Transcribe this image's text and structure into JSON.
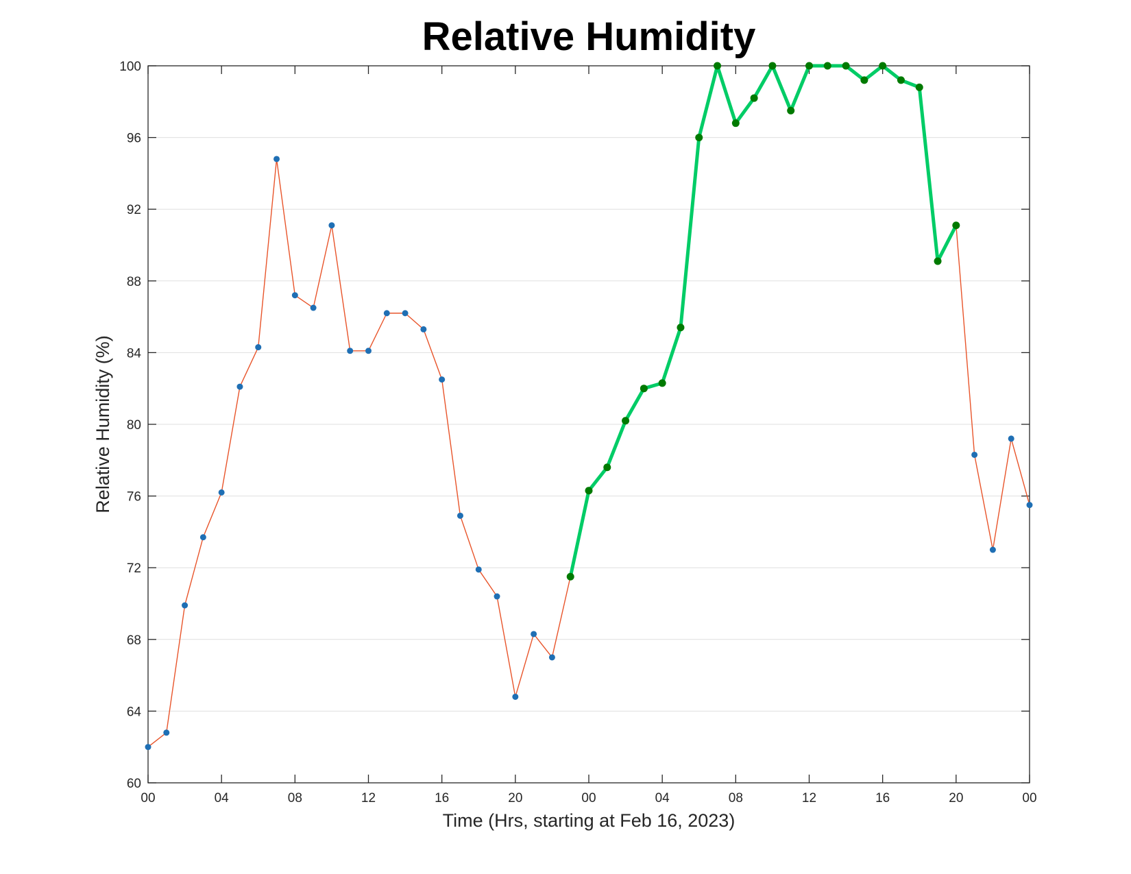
{
  "chart_data": {
    "type": "line",
    "title": "Relative Humidity",
    "xlabel": "Time (Hrs, starting at Feb 16, 2023)",
    "ylabel": "Relative Humidity (%)",
    "ylim": [
      60,
      100
    ],
    "yticks": [
      60,
      64,
      68,
      72,
      76,
      80,
      84,
      88,
      92,
      96,
      100
    ],
    "xlim": [
      0,
      48
    ],
    "xticks": [
      0,
      4,
      8,
      12,
      16,
      20,
      24,
      28,
      32,
      36,
      40,
      44,
      48
    ],
    "xtick_labels": [
      "00",
      "04",
      "08",
      "12",
      "16",
      "20",
      "00",
      "04",
      "08",
      "12",
      "16",
      "20",
      "00"
    ],
    "grid": "horizontal",
    "series": [
      {
        "x": [
          0,
          1,
          2,
          3,
          4,
          5,
          6,
          7,
          8,
          9,
          10,
          11,
          12,
          13,
          14,
          15,
          16,
          17,
          18,
          19,
          20,
          21,
          22,
          23,
          24,
          25,
          26,
          27,
          28,
          29,
          30,
          31,
          32,
          33,
          34,
          35,
          36,
          37,
          38,
          39,
          40,
          41,
          42,
          43,
          44,
          45,
          46,
          47,
          48
        ],
        "values": [
          62.0,
          62.8,
          69.9,
          73.7,
          76.2,
          82.1,
          84.3,
          94.8,
          87.2,
          86.5,
          91.1,
          84.1,
          84.1,
          86.2,
          86.2,
          85.3,
          82.5,
          74.9,
          71.9,
          70.4,
          64.8,
          68.3,
          67.0,
          71.5,
          76.3,
          77.6,
          80.2,
          82.0,
          82.3,
          85.4,
          96.0,
          100.0,
          96.8,
          98.2,
          100.0,
          97.5,
          100.0,
          100.0,
          100.0,
          99.2,
          100.0,
          99.2,
          98.8,
          89.1,
          91.1,
          78.3,
          73.0,
          79.2,
          75.5
        ],
        "line_color": "#e8542a",
        "marker_color": "#1f6fb4"
      },
      {
        "x": [
          23,
          24,
          25,
          26,
          27,
          28,
          29,
          30,
          31,
          32,
          33,
          34,
          35,
          36,
          37,
          38,
          39,
          40,
          41,
          42,
          43,
          44
        ],
        "values": [
          71.5,
          76.3,
          77.6,
          80.2,
          82.0,
          82.3,
          85.4,
          96.0,
          100.0,
          96.8,
          98.2,
          100.0,
          97.5,
          100.0,
          100.0,
          100.0,
          99.2,
          100.0,
          99.2,
          98.8,
          89.1,
          91.1
        ],
        "line_color": "#00cc66",
        "marker_color": "#007a00"
      }
    ]
  }
}
